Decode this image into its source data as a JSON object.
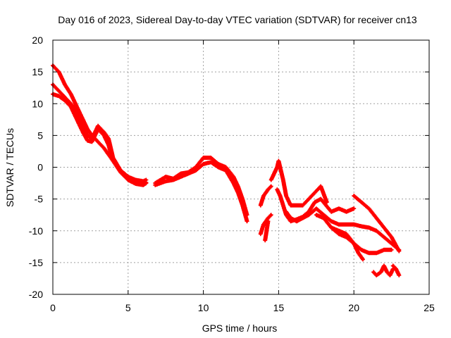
{
  "chart_data": {
    "type": "scatter",
    "title": "Day 016 of 2023, Sidereal Day-to-day VTEC variation (SDTVAR) for receiver cn13",
    "xlabel": "GPS time / hours",
    "ylabel": "SDTVAR / TECUs",
    "xlim": [
      0,
      25
    ],
    "ylim": [
      -20,
      20
    ],
    "xticks": [
      0,
      5,
      10,
      15,
      20,
      25
    ],
    "yticks": [
      -20,
      -15,
      -10,
      -5,
      0,
      5,
      10,
      15,
      20
    ],
    "grid": true,
    "marker": "plus",
    "color": "#ff0000",
    "series": [
      {
        "name": "arc-1",
        "x": [
          0.0,
          0.4,
          0.8,
          1.2,
          1.5,
          2.0,
          2.3,
          2.6,
          3.0,
          3.4,
          3.7,
          4.0,
          4.5,
          5.0,
          5.5,
          6.0,
          6.2
        ],
        "y": [
          16.0,
          15.0,
          13.0,
          11.5,
          10.0,
          7.5,
          6.0,
          5.0,
          4.0,
          3.0,
          2.0,
          1.0,
          -0.5,
          -1.5,
          -2.0,
          -2.2,
          -2.0
        ]
      },
      {
        "name": "arc-2",
        "x": [
          0.0,
          0.4,
          0.8,
          1.2,
          1.5,
          2.0,
          2.3,
          2.6,
          3.0,
          3.4,
          3.7,
          4.0,
          4.5,
          5.0,
          5.5,
          6.0,
          6.2
        ],
        "y": [
          13.0,
          12.0,
          11.0,
          10.0,
          9.0,
          6.5,
          5.0,
          4.5,
          6.5,
          5.5,
          4.5,
          1.5,
          -0.5,
          -1.5,
          -2.2,
          -2.6,
          -2.4
        ]
      },
      {
        "name": "arc-3",
        "x": [
          0.0,
          0.4,
          0.8,
          1.2,
          1.5,
          2.0,
          2.3,
          2.6,
          3.0,
          3.4,
          3.7,
          4.0,
          4.5,
          5.0,
          5.5,
          6.0,
          6.2
        ],
        "y": [
          11.5,
          11.2,
          10.5,
          9.5,
          8.0,
          5.5,
          4.2,
          4.0,
          6.0,
          5.0,
          3.5,
          1.0,
          -0.8,
          -2.0,
          -2.6,
          -2.8,
          -2.5
        ]
      },
      {
        "name": "arc-4",
        "x": [
          6.8,
          7.5,
          8.0,
          8.5,
          9.0,
          9.5,
          10.0,
          10.5,
          11.0,
          11.5,
          12.0,
          12.3,
          12.6,
          12.9
        ],
        "y": [
          -2.5,
          -1.5,
          -1.8,
          -1.0,
          -0.8,
          0.0,
          1.5,
          1.5,
          0.5,
          0.0,
          -1.5,
          -3.0,
          -5.0,
          -7.5
        ]
      },
      {
        "name": "arc-5",
        "x": [
          6.8,
          7.5,
          8.0,
          8.5,
          9.0,
          9.5,
          10.0,
          10.5,
          11.0,
          11.5,
          12.0,
          12.3,
          12.6,
          12.9
        ],
        "y": [
          -2.8,
          -2.2,
          -2.0,
          -1.5,
          -1.0,
          -0.5,
          0.5,
          0.8,
          0.0,
          -0.5,
          -2.5,
          -4.0,
          -6.0,
          -8.5
        ]
      },
      {
        "name": "arc-6",
        "x": [
          13.8,
          14.0,
          14.3,
          14.5
        ],
        "y": [
          -6.0,
          -4.5,
          -3.5,
          -3.0
        ]
      },
      {
        "name": "arc-7",
        "x": [
          13.8,
          14.0,
          14.3,
          14.5
        ],
        "y": [
          -10.5,
          -9.0,
          -8.0,
          -7.5
        ]
      },
      {
        "name": "arc-8",
        "x": [
          14.1,
          14.2,
          14.3
        ],
        "y": [
          -11.5,
          -10.0,
          -8.5
        ]
      },
      {
        "name": "arc-9",
        "x": [
          14.5,
          14.7,
          14.9,
          15.0,
          15.1,
          15.3,
          15.5,
          15.8,
          16.2,
          16.6,
          17.0,
          17.4,
          17.8,
          18.2
        ],
        "y": [
          -2.0,
          -1.0,
          0.0,
          1.0,
          0.0,
          -2.0,
          -4.5,
          -6.0,
          -6.0,
          -6.0,
          -5.0,
          -4.0,
          -3.0,
          -5.5
        ]
      },
      {
        "name": "arc-10",
        "x": [
          14.9,
          15.1,
          15.3,
          15.5,
          15.8,
          16.2,
          16.6,
          17.0,
          17.4,
          17.8,
          18.5,
          19.0,
          19.5,
          20.0
        ],
        "y": [
          -3.5,
          -4.5,
          -6.0,
          -7.5,
          -8.5,
          -8.2,
          -7.8,
          -7.0,
          -5.5,
          -5.0,
          -7.0,
          -6.5,
          -7.0,
          -6.5
        ]
      },
      {
        "name": "arc-11",
        "x": [
          15.5,
          15.8,
          16.2,
          16.6,
          17.0,
          17.5,
          18.0,
          18.5,
          19.0,
          19.5,
          20.0,
          20.5,
          21.0,
          21.5,
          22.0,
          22.5,
          23.0
        ],
        "y": [
          -7.0,
          -8.0,
          -8.5,
          -8.0,
          -7.5,
          -6.5,
          -7.5,
          -8.5,
          -9.0,
          -9.0,
          -9.0,
          -9.3,
          -9.5,
          -10.0,
          -11.0,
          -12.0,
          -13.0
        ]
      },
      {
        "name": "arc-12",
        "x": [
          17.5,
          18.0,
          18.5,
          19.0,
          19.5,
          20.0,
          20.3,
          20.6
        ],
        "y": [
          -7.5,
          -8.0,
          -9.5,
          -10.0,
          -10.5,
          -12.0,
          -13.5,
          -14.5
        ]
      },
      {
        "name": "arc-13",
        "x": [
          18.5,
          19.0,
          19.5,
          20.0,
          20.5,
          21.0,
          21.5,
          22.0,
          22.5
        ],
        "y": [
          -9.5,
          -10.5,
          -11.0,
          -12.0,
          -13.0,
          -13.5,
          -13.5,
          -13.0,
          -13.0
        ]
      },
      {
        "name": "arc-14",
        "x": [
          20.0,
          20.5,
          21.0,
          21.5,
          22.0,
          22.5,
          23.0
        ],
        "y": [
          -4.5,
          -5.5,
          -6.5,
          -8.0,
          -9.5,
          -11.0,
          -13.2
        ]
      },
      {
        "name": "arc-15",
        "x": [
          21.3,
          21.5,
          21.8,
          22.0,
          22.2,
          22.4,
          22.6
        ],
        "y": [
          -16.5,
          -17.0,
          -16.5,
          -15.5,
          -16.5,
          -17.0,
          -16.0
        ]
      },
      {
        "name": "arc-16",
        "x": [
          22.6,
          22.8,
          23.0
        ],
        "y": [
          -15.5,
          -16.0,
          -17.0
        ]
      }
    ]
  }
}
